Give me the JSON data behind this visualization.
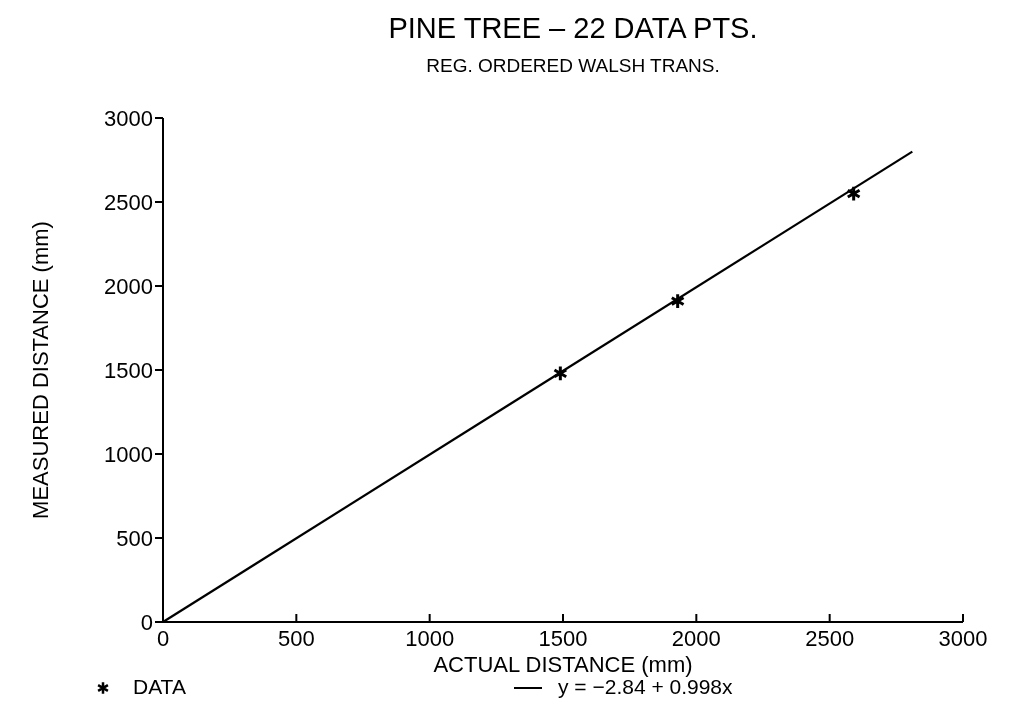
{
  "chart_data": {
    "type": "scatter",
    "title": "PINE TREE – 22 DATA PTS.",
    "subtitle": "REG. ORDERED WALSH TRANS.",
    "xlabel": "ACTUAL DISTANCE (mm)",
    "ylabel": "MEASURED DISTANCE (mm)",
    "xlim": [
      0,
      3000
    ],
    "ylim": [
      0,
      3000
    ],
    "xticks": [
      0,
      500,
      1000,
      1500,
      2000,
      2500,
      3000
    ],
    "yticks": [
      0,
      500,
      1000,
      1500,
      2000,
      2500,
      3000
    ],
    "grid": false,
    "legend": "bottom",
    "series": [
      {
        "name": "DATA",
        "marker": "cross",
        "color": "#000000",
        "x": [
          1490,
          1930,
          2590
        ],
        "values": [
          1480,
          1910,
          2550
        ]
      },
      {
        "name": "y = −2.84 + 0.998x",
        "type": "line",
        "marker": "none",
        "line_style": "solid",
        "color": "#000000",
        "x": [
          0,
          2810
        ],
        "values": [
          0,
          2800
        ]
      }
    ]
  }
}
